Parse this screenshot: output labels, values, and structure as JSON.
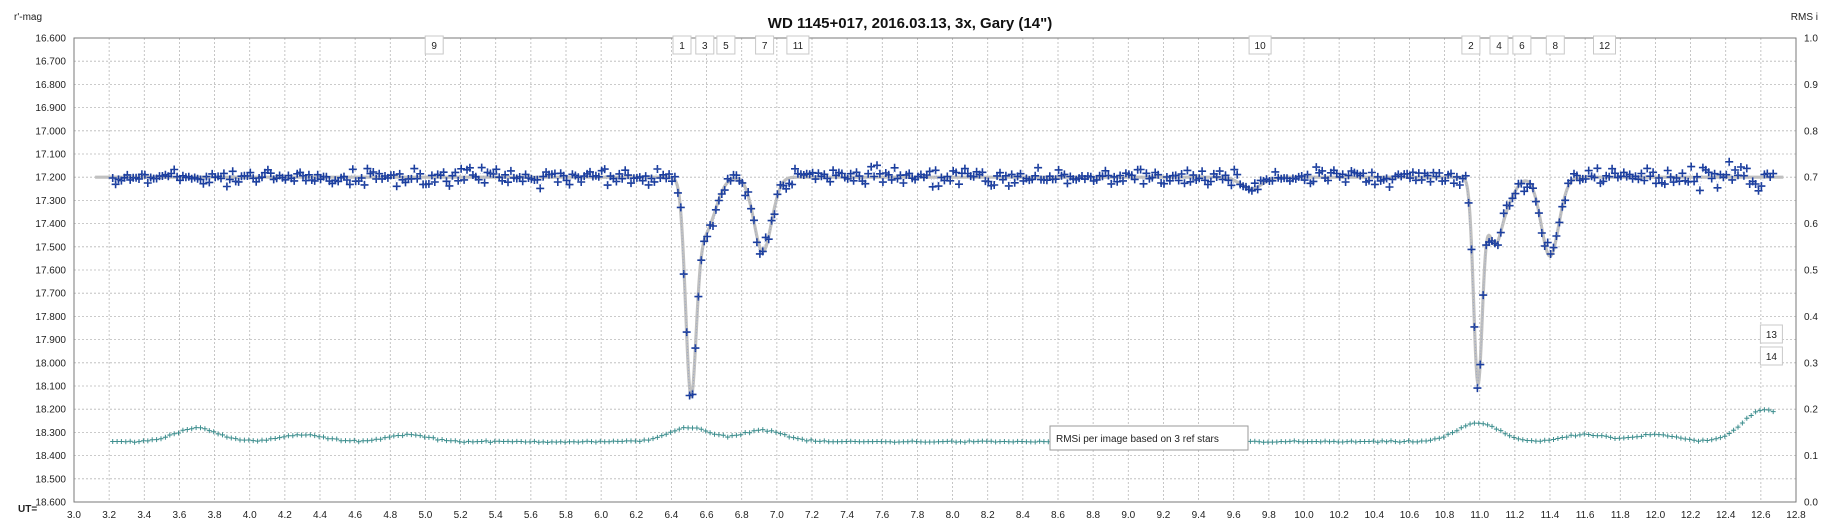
{
  "chart_data": {
    "type": "scatter",
    "title": "WD 1145+017,  2016.03.13,  3x, Gary (14\")",
    "ylabel": "r'-mag",
    "y2label": "RMS i",
    "xlabel": "UT=",
    "xlim": [
      3.0,
      12.8
    ],
    "ylim": [
      16.6,
      18.6
    ],
    "y_inverted": true,
    "y2lim": [
      0.0,
      1.0
    ],
    "grid": true,
    "x_ticks": [
      "3.0",
      "3.2",
      "3.4",
      "3.6",
      "3.8",
      "4.0",
      "4.2",
      "4.4",
      "4.6",
      "4.8",
      "5.0",
      "5.2",
      "5.4",
      "5.6",
      "5.8",
      "6.0",
      "6.2",
      "6.4",
      "6.6",
      "6.8",
      "7.0",
      "7.2",
      "7.4",
      "7.6",
      "7.8",
      "8.0",
      "8.2",
      "8.4",
      "8.6",
      "8.8",
      "9.0",
      "9.2",
      "9.4",
      "9.6",
      "9.8",
      "10.0",
      "10.2",
      "10.4",
      "10.6",
      "10.8",
      "11.0",
      "11.2",
      "11.4",
      "11.6",
      "11.8",
      "12.0",
      "12.2",
      "12.4",
      "12.6",
      "12.8"
    ],
    "y_ticks": [
      "16.600",
      "16.700",
      "16.800",
      "16.900",
      "17.000",
      "17.100",
      "17.200",
      "17.300",
      "17.400",
      "17.500",
      "17.600",
      "17.700",
      "17.800",
      "17.900",
      "18.000",
      "18.100",
      "18.200",
      "18.300",
      "18.400",
      "18.500",
      "18.600"
    ],
    "y2_ticks": [
      "1.0",
      "0.9",
      "0.8",
      "0.7",
      "0.6",
      "0.5",
      "0.4",
      "0.3",
      "0.2",
      "0.1",
      "0.0"
    ],
    "series": [
      {
        "kind": "model",
        "color": "#c0c0c0",
        "baseline": 17.2,
        "dips": [
          {
            "center": 6.51,
            "depth": 0.85,
            "width": 0.03
          },
          {
            "center": 6.57,
            "depth": 0.18,
            "width": 0.05
          },
          {
            "center": 6.63,
            "depth": 0.1,
            "width": 0.05
          },
          {
            "center": 6.92,
            "depth": 0.32,
            "width": 0.05
          },
          {
            "center": 9.7,
            "depth": 0.05,
            "width": 0.06
          },
          {
            "center": 10.99,
            "depth": 0.87,
            "width": 0.025
          },
          {
            "center": 11.08,
            "depth": 0.25,
            "width": 0.04
          },
          {
            "center": 11.15,
            "depth": 0.1,
            "width": 0.05
          },
          {
            "center": 11.4,
            "depth": 0.34,
            "width": 0.05
          }
        ]
      },
      {
        "kind": "measurements",
        "color": "#1a3d9e",
        "x_range": [
          3.22,
          12.68
        ],
        "cadence_min": 1.0
      },
      {
        "kind": "rms",
        "color": "#3f8f8f",
        "axis": "right",
        "x_range": [
          3.22,
          12.68
        ],
        "baseline": 0.13,
        "bumps": [
          {
            "center": 3.7,
            "height": 0.03
          },
          {
            "center": 4.3,
            "height": 0.015
          },
          {
            "center": 4.9,
            "height": 0.015
          },
          {
            "center": 6.5,
            "height": 0.03
          },
          {
            "center": 6.92,
            "height": 0.025
          },
          {
            "center": 10.99,
            "height": 0.04
          },
          {
            "center": 11.6,
            "height": 0.015
          },
          {
            "center": 12.0,
            "height": 0.015
          },
          {
            "center": 12.62,
            "height": 0.07
          }
        ]
      }
    ],
    "labels": [
      {
        "text": "9",
        "x": 5.05,
        "row": 0
      },
      {
        "text": "1",
        "x": 6.46,
        "row": 0
      },
      {
        "text": "3",
        "x": 6.59,
        "row": 0
      },
      {
        "text": "5",
        "x": 6.71,
        "row": 0
      },
      {
        "text": "7",
        "x": 6.93,
        "row": 0
      },
      {
        "text": "11",
        "x": 7.12,
        "row": 0
      },
      {
        "text": "10",
        "x": 9.75,
        "row": 0
      },
      {
        "text": "2",
        "x": 10.95,
        "row": 0
      },
      {
        "text": "4",
        "x": 11.11,
        "row": 0
      },
      {
        "text": "6",
        "x": 11.24,
        "row": 0
      },
      {
        "text": "8",
        "x": 11.43,
        "row": 0
      },
      {
        "text": "12",
        "x": 11.71,
        "row": 0
      },
      {
        "text": "13",
        "x": 12.66,
        "row": 1
      },
      {
        "text": "14",
        "x": 12.66,
        "row": 2
      }
    ],
    "annotation": "RMSi per image based on 3 ref stars"
  }
}
